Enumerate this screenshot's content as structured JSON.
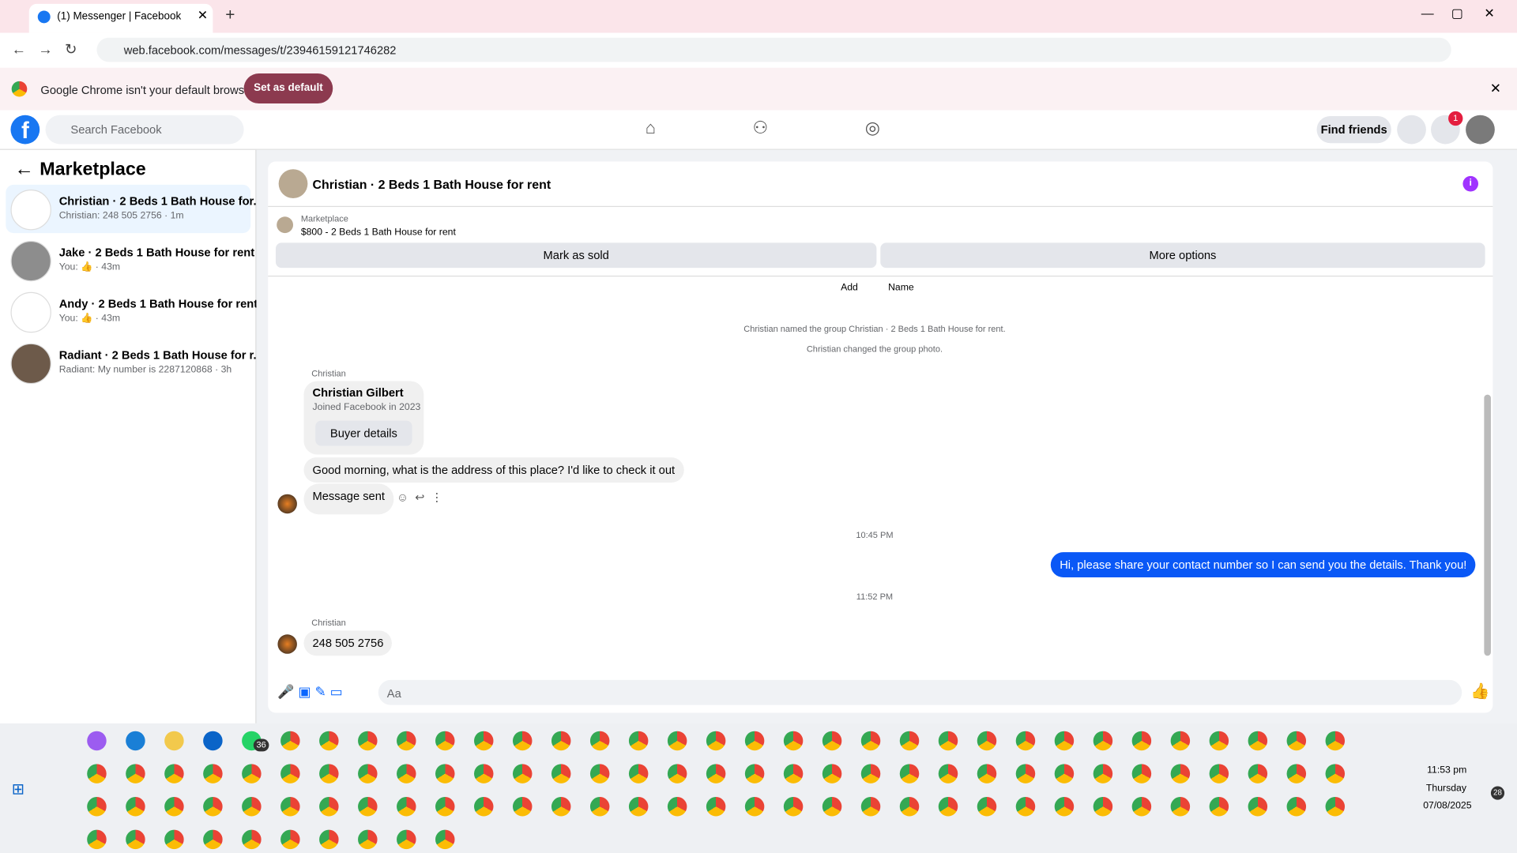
{
  "browser": {
    "tab_title": "(1) Messenger | Facebook",
    "url": "web.facebook.com/messages/t/23946159121746282",
    "infobar_text": "Google Chrome isn't your default browser",
    "infobar_button": "Set as default"
  },
  "facebook": {
    "search_placeholder": "Search Facebook",
    "notification_count": "1",
    "find_friends": "Find friends"
  },
  "sidebar": {
    "title": "Marketplace",
    "conversations": [
      {
        "name": "Christian · 2 Beds 1 Bath House for...",
        "preview": "Christian: 248 505 2756 · 1m"
      },
      {
        "name": "Jake · 2 Beds 1 Bath House for rent",
        "preview": "You: 👍 · 43m"
      },
      {
        "name": "Andy · 2 Beds 1 Bath House for rent",
        "preview": "You: 👍 · 43m"
      },
      {
        "name": "Radiant · 2 Beds 1 Bath House for r...",
        "preview": "Radiant: My number is 2287120868 · 3h"
      }
    ]
  },
  "chat": {
    "title": "Christian · 2 Beds 1 Bath House for rent",
    "listing_label": "Marketplace",
    "listing_title": "$800 - 2 Beds 1 Bath House for rent",
    "mark_sold": "Mark as sold",
    "more_options": "More options",
    "partial_actions": [
      "Add",
      "Name"
    ],
    "system_messages": [
      "Christian named the group Christian · 2 Beds 1 Bath House for rent.",
      "Christian changed the group photo."
    ],
    "sender": "Christian",
    "card_name": "Christian Gilbert",
    "card_joined": "Joined Facebook in 2023",
    "card_button": "Buyer details",
    "message_1": "Good morning, what is the address of this place? I'd like to check it out",
    "message_2": "Message sent",
    "time_1": "10:45 PM",
    "my_message": "Hi, please share your contact number so I can send you the details. Thank you!",
    "time_2": "11:52 PM",
    "sender_2": "Christian",
    "message_3": "248 505 2756",
    "composer_placeholder": "Aa"
  },
  "taskbar": {
    "whatsapp_badge": "36",
    "time": "11:53 pm",
    "day": "Thursday",
    "date": "07/08/2025",
    "notification_badge": "28"
  }
}
